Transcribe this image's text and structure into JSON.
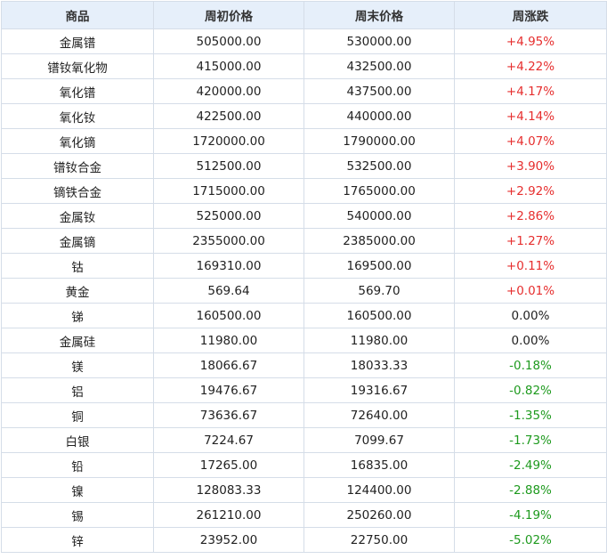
{
  "table": {
    "headers": [
      "商品",
      "周初价格",
      "周末价格",
      "周涨跌"
    ],
    "rows": [
      [
        "金属镨",
        "505000.00",
        "530000.00",
        "+4.95%"
      ],
      [
        "镨钕氧化物",
        "415000.00",
        "432500.00",
        "+4.22%"
      ],
      [
        "氧化镨",
        "420000.00",
        "437500.00",
        "+4.17%"
      ],
      [
        "氧化钕",
        "422500.00",
        "440000.00",
        "+4.14%"
      ],
      [
        "氧化镝",
        "1720000.00",
        "1790000.00",
        "+4.07%"
      ],
      [
        "镨钕合金",
        "512500.00",
        "532500.00",
        "+3.90%"
      ],
      [
        "镝铁合金",
        "1715000.00",
        "1765000.00",
        "+2.92%"
      ],
      [
        "金属钕",
        "525000.00",
        "540000.00",
        "+2.86%"
      ],
      [
        "金属镝",
        "2355000.00",
        "2385000.00",
        "+1.27%"
      ],
      [
        "钴",
        "169310.00",
        "169500.00",
        "+0.11%"
      ],
      [
        "黄金",
        "569.64",
        "569.70",
        "+0.01%"
      ],
      [
        "锑",
        "160500.00",
        "160500.00",
        "0.00%"
      ],
      [
        "金属硅",
        "11980.00",
        "11980.00",
        "0.00%"
      ],
      [
        "镁",
        "18066.67",
        "18033.33",
        "-0.18%"
      ],
      [
        "铝",
        "19476.67",
        "19316.67",
        "-0.82%"
      ],
      [
        "铜",
        "73636.67",
        "72640.00",
        "-1.35%"
      ],
      [
        "白银",
        "7224.67",
        "7099.67",
        "-1.73%"
      ],
      [
        "铅",
        "17265.00",
        "16835.00",
        "-2.49%"
      ],
      [
        "镍",
        "128083.33",
        "124400.00",
        "-2.88%"
      ],
      [
        "锡",
        "261210.00",
        "250260.00",
        "-4.19%"
      ],
      [
        "锌",
        "23952.00",
        "22750.00",
        "-5.02%"
      ]
    ]
  }
}
